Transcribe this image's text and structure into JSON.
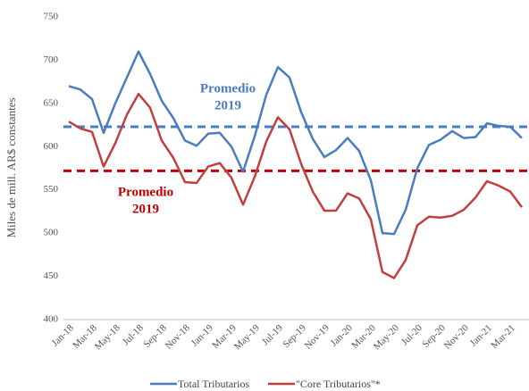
{
  "chart_data": {
    "type": "line",
    "y_label": "Miles de mill. AR$ constantes",
    "categories": [
      "Jan-18",
      null,
      "Mar-18",
      null,
      "May-18",
      null,
      "Jul-18",
      null,
      "Sep-18",
      null,
      "Nov-18",
      null,
      "Jan-19",
      null,
      "Mar-19",
      null,
      "May-19",
      null,
      "Jul-19",
      null,
      "Sep-19",
      null,
      "Nov-19",
      null,
      "Jan-20",
      null,
      "Mar-20",
      null,
      "May-20",
      null,
      "Jul-20",
      null,
      "Sep-20",
      null,
      "Nov-20",
      null,
      "Jan-21",
      null,
      "Mar-21",
      null
    ],
    "series": [
      {
        "name": "Total Tributarios",
        "color": "#4a7dc0",
        "values": [
          670,
          666,
          655,
          616,
          650,
          680,
          710,
          684,
          653,
          633,
          607,
          601,
          615,
          616,
          600,
          571,
          612,
          660,
          692,
          680,
          640,
          609,
          588,
          596,
          610,
          595,
          561,
          500,
          499,
          527,
          575,
          602,
          608,
          618,
          610,
          611,
          627,
          624,
          623,
          610
        ]
      },
      {
        "name": "\"Core Tributarios\"*",
        "color": "#c0403f",
        "values": [
          629,
          621,
          617,
          577,
          604,
          637,
          661,
          645,
          607,
          587,
          559,
          558,
          577,
          581,
          564,
          533,
          565,
          606,
          634,
          620,
          580,
          548,
          526,
          526,
          546,
          540,
          516,
          455,
          448,
          469,
          509,
          519,
          518,
          520,
          527,
          541,
          560,
          555,
          548,
          530
        ]
      }
    ],
    "reference_lines": [
      {
        "value": 623,
        "color": "#4a7dc0",
        "lines": [
          "Promedio",
          "2019"
        ]
      },
      {
        "value": 572,
        "color": "#c00000",
        "lines": [
          "Promedio",
          "2019"
        ]
      }
    ],
    "ylim": [
      400,
      750
    ],
    "yticks": [
      400,
      450,
      500,
      550,
      600,
      650,
      700,
      750
    ],
    "legend": "bottom"
  }
}
